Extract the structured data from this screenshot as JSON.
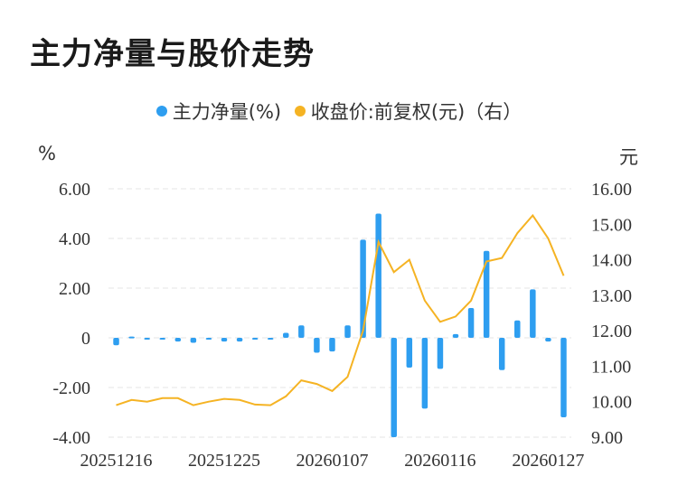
{
  "title": "主力净量与股价走势",
  "legend": {
    "series1": "主力净量(%)",
    "series2": "收盘价:前复权(元)（右）"
  },
  "colors": {
    "bar": "#2e9ef0",
    "line": "#f5b323",
    "grid": "#e6e6e6",
    "text": "#333333"
  },
  "chart_data": {
    "type": "bar",
    "left_unit": "%",
    "right_unit": "元",
    "left_axis": {
      "ylim": [
        -4,
        6
      ],
      "ticks": [
        "6.00",
        "4.00",
        "2.00",
        "0",
        "-2.00",
        "-4.00"
      ]
    },
    "right_axis": {
      "ylim": [
        9,
        16
      ],
      "ticks": [
        "16.00",
        "15.00",
        "14.00",
        "13.00",
        "12.00",
        "11.00",
        "10.00",
        "9.00"
      ]
    },
    "x_tick_labels": [
      "20251216",
      "20251225",
      "20260107",
      "20260116",
      "20260127"
    ],
    "x_tick_indices": [
      0,
      7,
      14,
      21,
      28
    ],
    "series": [
      {
        "name": "主力净量(%)",
        "type": "bar",
        "values": [
          -0.3,
          0.05,
          -0.05,
          -0.05,
          -0.15,
          -0.2,
          -0.05,
          -0.15,
          -0.15,
          -0.05,
          -0.05,
          0.2,
          0.5,
          -0.6,
          -0.55,
          0.5,
          3.95,
          5.0,
          -4.0,
          -1.2,
          -2.85,
          -1.25,
          0.15,
          1.2,
          3.5,
          -1.3,
          0.7,
          1.95,
          -0.15,
          -3.2
        ]
      },
      {
        "name": "收盘价:前复权(元)（右）",
        "type": "line",
        "values": [
          9.9,
          10.05,
          10.0,
          10.1,
          10.1,
          9.9,
          10.0,
          10.08,
          10.05,
          9.92,
          9.9,
          10.15,
          10.6,
          10.5,
          10.3,
          10.7,
          12.0,
          14.5,
          13.65,
          14.0,
          12.85,
          12.25,
          12.4,
          12.85,
          13.95,
          14.05,
          14.75,
          15.25,
          14.6,
          13.55
        ]
      }
    ]
  }
}
